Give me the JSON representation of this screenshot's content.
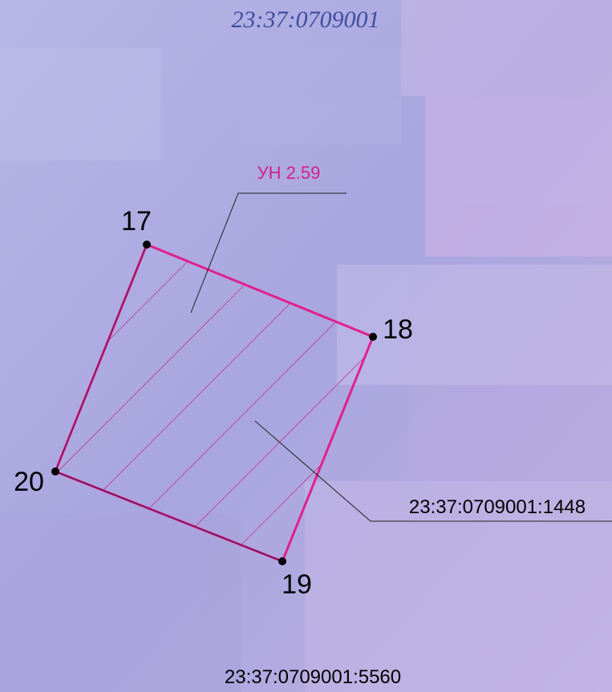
{
  "map": {
    "quarter_number": "23:37:0709001",
    "zone_label": "УН 2.59",
    "points": [
      {
        "label": "17"
      },
      {
        "label": "18"
      },
      {
        "label": "19"
      },
      {
        "label": "20"
      }
    ],
    "parcel_number": "23:37:0709001:1448",
    "neighbor_parcel_number": "23:37:0709001:5560"
  }
}
